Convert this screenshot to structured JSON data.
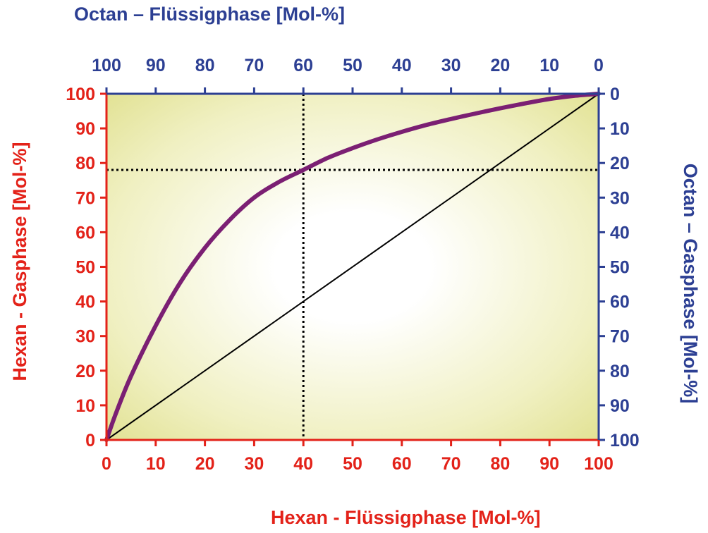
{
  "chart_data": {
    "type": "line",
    "xlabel_bottom": "Hexan - Flüssigphase  [Mol-%]",
    "xlabel_top": "Octan – Flüssigphase   [Mol-%]",
    "ylabel_left": "Hexan - Gasphase  [Mol-%]",
    "ylabel_right": "Octan – Gasphase   [Mol-%]",
    "xlim": [
      0,
      100
    ],
    "ylim": [
      0,
      100
    ],
    "ticks_bottom": [
      "0",
      "10",
      "20",
      "30",
      "40",
      "50",
      "60",
      "70",
      "80",
      "90",
      "100"
    ],
    "ticks_top": [
      "100",
      "90",
      "80",
      "70",
      "60",
      "50",
      "40",
      "30",
      "20",
      "10",
      "0"
    ],
    "ticks_left": [
      "0",
      "10",
      "20",
      "30",
      "40",
      "50",
      "60",
      "70",
      "80",
      "90",
      "100"
    ],
    "ticks_right": [
      "100",
      "90",
      "80",
      "70",
      "60",
      "50",
      "40",
      "30",
      "20",
      "10",
      "0"
    ],
    "series": [
      {
        "x": [
          0,
          2,
          5,
          10,
          15,
          20,
          25,
          30,
          35,
          40,
          45,
          50,
          55,
          60,
          65,
          70,
          75,
          80,
          85,
          90,
          95,
          100
        ],
        "y": [
          0,
          8,
          18.5,
          33,
          45.5,
          55.5,
          63.5,
          70,
          74.5,
          78,
          81.5,
          84.3,
          86.8,
          89,
          91,
          92.7,
          94.3,
          95.8,
          97.2,
          98.5,
          99.4,
          100
        ]
      },
      {
        "x": [
          0,
          100
        ],
        "y": [
          0,
          100
        ]
      }
    ],
    "annotations": {
      "marker_x": 40,
      "marker_y": 78
    },
    "colors": {
      "left_bottom_axis": "#e32219",
      "top_right_axis": "#2c3f93",
      "equilibrium_curve": "#7b1f73",
      "diagonal": "#000000",
      "background_outer": "#e6e69a",
      "background_center": "#ffffff"
    },
    "grid": false
  }
}
